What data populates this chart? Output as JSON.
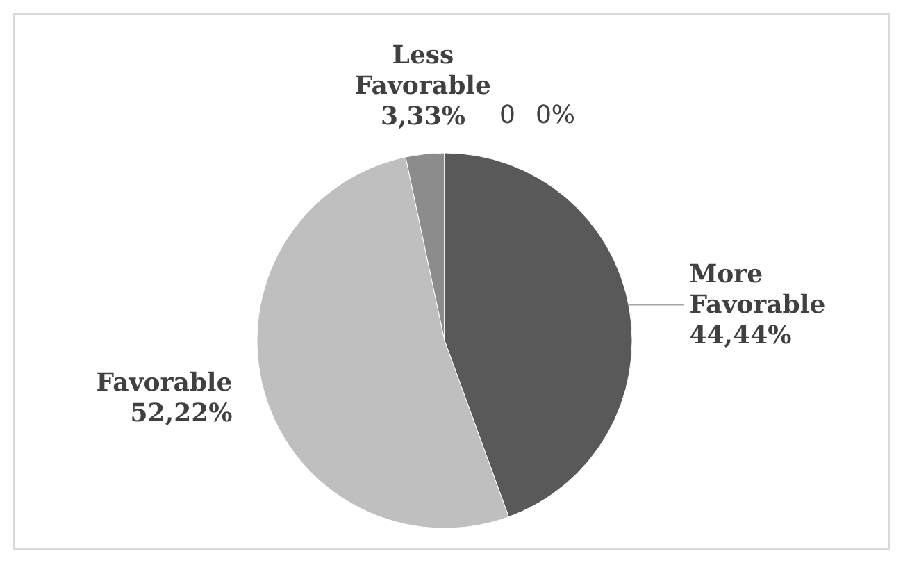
{
  "chart_data": {
    "type": "pie",
    "categories": [
      "More Favorable",
      "Favorable",
      "Less Favorable",
      "0"
    ],
    "values": [
      44.44,
      52.22,
      3.33,
      0
    ],
    "value_labels": [
      "44,44%",
      "52,22%",
      "3,33%",
      "0%"
    ],
    "colors": [
      "#595959",
      "#bfbfbf",
      "#8c8c8c",
      "#404040"
    ]
  }
}
